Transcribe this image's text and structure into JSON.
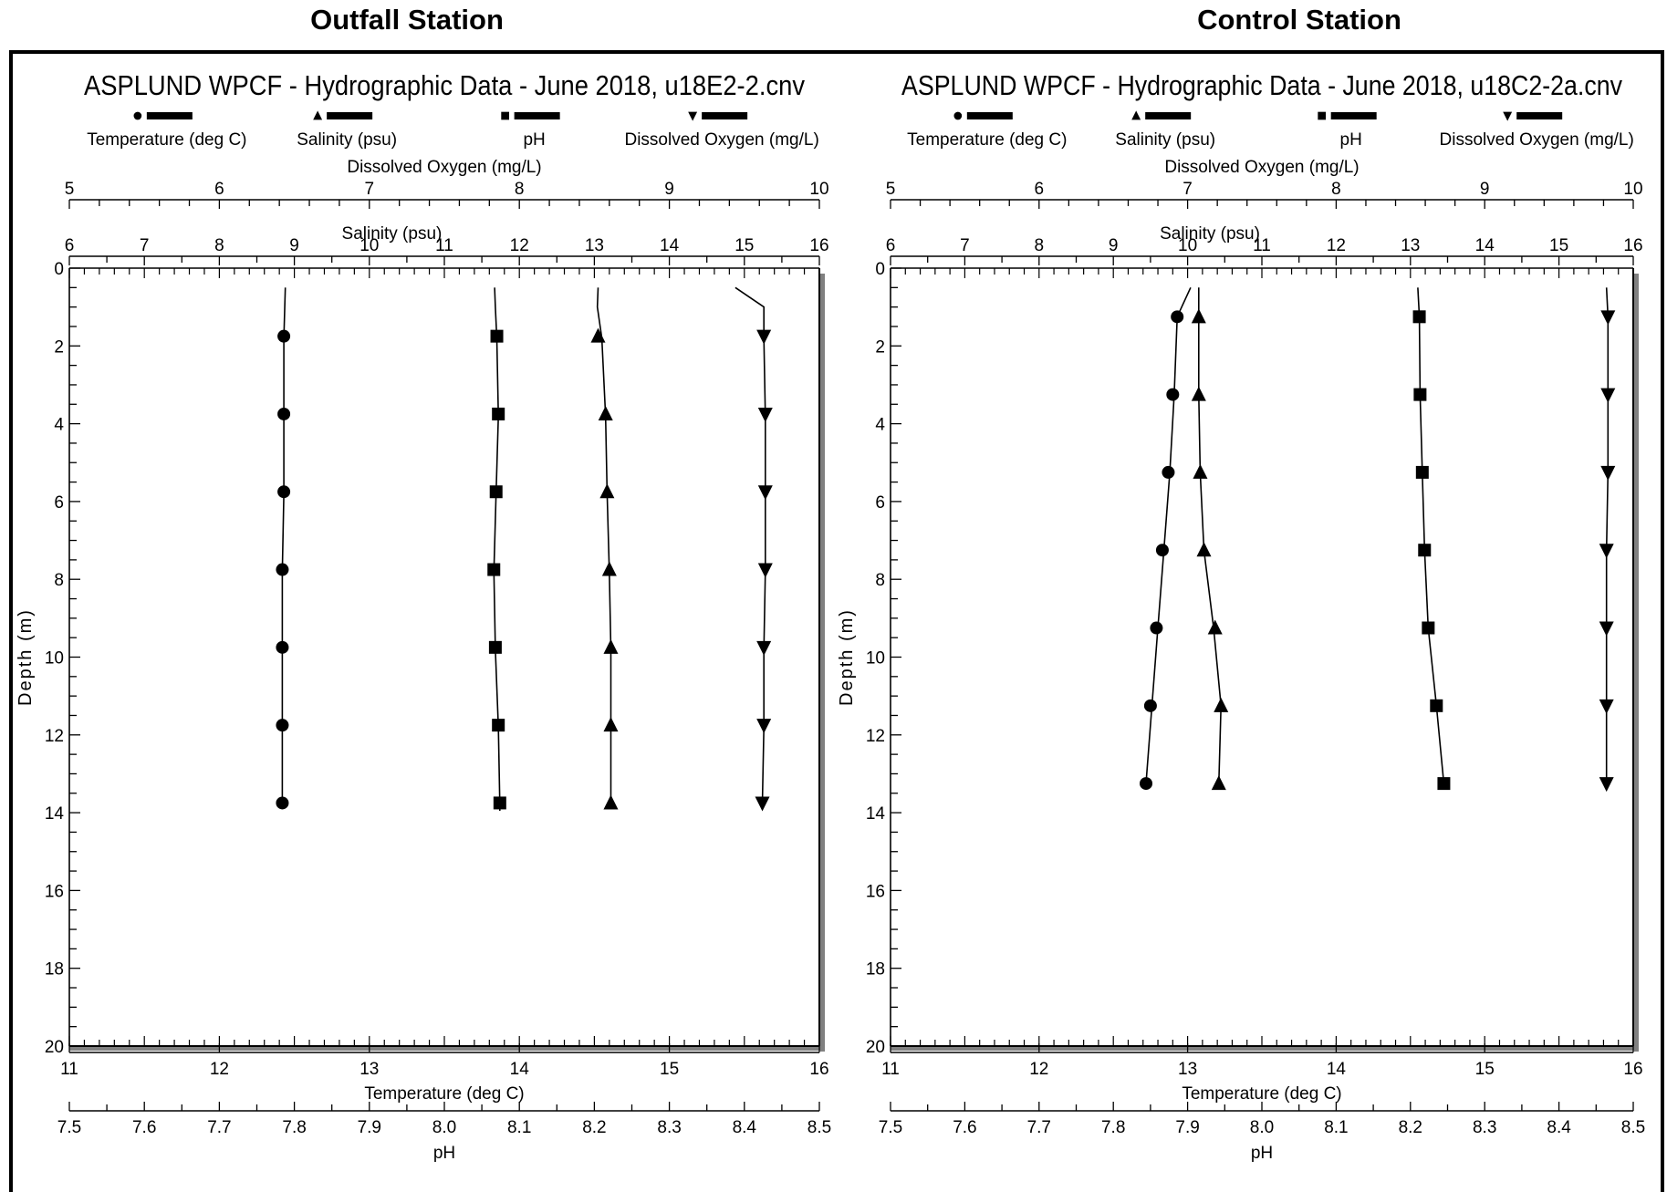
{
  "station_titles": {
    "left": "Outfall Station",
    "right": "Control Station"
  },
  "chart_data": [
    {
      "type": "line",
      "title": "ASPLUND WPCF - Hydrographic Data - June 2018, u18E2-2.cnv",
      "legend": [
        "Temperature (deg C)",
        "Salinity (psu)",
        "pH",
        "Dissolved Oxygen (mg/L)"
      ],
      "axes": {
        "do": {
          "label": "Dissolved Oxygen (mg/L)",
          "range": [
            5,
            10
          ],
          "ticks": [
            5,
            6,
            7,
            8,
            9,
            10
          ]
        },
        "salinity": {
          "label": "Salinity (psu)",
          "range": [
            6,
            16
          ],
          "ticks": [
            6,
            7,
            8,
            9,
            10,
            11,
            12,
            13,
            14,
            15,
            16
          ]
        },
        "depth": {
          "label": "Depth (m)",
          "range": [
            0,
            20
          ],
          "ticks": [
            0,
            2,
            4,
            6,
            8,
            10,
            12,
            14,
            16,
            18,
            20
          ],
          "inverted": true
        },
        "temperature": {
          "label": "Temperature (deg C)",
          "range": [
            11,
            16
          ],
          "ticks": [
            11,
            12,
            13,
            14,
            15,
            16
          ]
        },
        "ph": {
          "label": "pH",
          "range": [
            7.5,
            8.5
          ],
          "ticks": [
            "7.5",
            "7.6",
            "7.7",
            "7.8",
            "7.9",
            "8.0",
            "8.1",
            "8.2",
            "8.3",
            "8.4",
            "8.5"
          ]
        }
      },
      "series": [
        {
          "name": "Temperature (deg C)",
          "marker": "circle",
          "axis": "temperature",
          "line": [
            [
              12.44,
              0.5
            ],
            [
              12.43,
              1.8
            ],
            [
              12.43,
              3.8
            ],
            [
              12.43,
              5.8
            ],
            [
              12.42,
              7.8
            ],
            [
              12.42,
              9.8
            ],
            [
              12.42,
              11.8
            ],
            [
              12.42,
              13.8
            ],
            [
              12.42,
              13.9
            ]
          ],
          "points": [
            [
              12.43,
              1.75
            ],
            [
              12.43,
              3.75
            ],
            [
              12.43,
              5.75
            ],
            [
              12.42,
              7.75
            ],
            [
              12.42,
              9.75
            ],
            [
              12.42,
              11.75
            ],
            [
              12.42,
              13.75
            ]
          ]
        },
        {
          "name": "Salinity (psu)",
          "marker": "triangle-up",
          "axis": "salinity",
          "line": [
            [
              13.05,
              0.5
            ],
            [
              13.04,
              1.0
            ],
            [
              13.1,
              1.8
            ],
            [
              13.15,
              3.8
            ],
            [
              13.17,
              5.8
            ],
            [
              13.2,
              7.8
            ],
            [
              13.22,
              9.8
            ],
            [
              13.22,
              11.8
            ],
            [
              13.22,
              13.8
            ],
            [
              13.22,
              13.9
            ]
          ],
          "points": [
            [
              13.05,
              1.75
            ],
            [
              13.15,
              3.75
            ],
            [
              13.17,
              5.75
            ],
            [
              13.2,
              7.75
            ],
            [
              13.22,
              9.75
            ],
            [
              13.22,
              11.75
            ],
            [
              13.22,
              13.75
            ]
          ]
        },
        {
          "name": "pH",
          "marker": "square",
          "axis": "ph",
          "line": [
            [
              8.067,
              0.5
            ],
            [
              8.068,
              1.0
            ],
            [
              8.07,
              1.8
            ],
            [
              8.072,
              3.8
            ],
            [
              8.069,
              5.8
            ],
            [
              8.066,
              7.8
            ],
            [
              8.068,
              9.8
            ],
            [
              8.072,
              11.8
            ],
            [
              8.074,
              13.8
            ],
            [
              8.074,
              13.95
            ]
          ],
          "points": [
            [
              8.07,
              1.75
            ],
            [
              8.072,
              3.75
            ],
            [
              8.069,
              5.75
            ],
            [
              8.066,
              7.75
            ],
            [
              8.068,
              9.75
            ],
            [
              8.072,
              11.75
            ],
            [
              8.074,
              13.75
            ]
          ]
        },
        {
          "name": "Dissolved Oxygen (mg/L)",
          "marker": "triangle-down",
          "axis": "do",
          "line": [
            [
              9.44,
              0.5
            ],
            [
              9.63,
              1.0
            ],
            [
              9.63,
              1.8
            ],
            [
              9.64,
              3.8
            ],
            [
              9.64,
              5.8
            ],
            [
              9.64,
              7.8
            ],
            [
              9.63,
              9.8
            ],
            [
              9.63,
              11.8
            ],
            [
              9.62,
              13.8
            ]
          ],
          "points": [
            [
              9.63,
              1.75
            ],
            [
              9.64,
              3.75
            ],
            [
              9.64,
              5.75
            ],
            [
              9.64,
              7.75
            ],
            [
              9.63,
              9.75
            ],
            [
              9.63,
              11.75
            ],
            [
              9.62,
              13.75
            ]
          ]
        }
      ]
    },
    {
      "type": "line",
      "title": "ASPLUND WPCF - Hydrographic Data - June 2018, u18C2-2a.cnv",
      "legend": [
        "Temperature (deg C)",
        "Salinity (psu)",
        "pH",
        "Dissolved Oxygen (mg/L)"
      ],
      "axes": {
        "do": {
          "label": "Dissolved Oxygen (mg/L)",
          "range": [
            5,
            10
          ],
          "ticks": [
            5,
            6,
            7,
            8,
            9,
            10
          ]
        },
        "salinity": {
          "label": "Salinity (psu)",
          "range": [
            6,
            16
          ],
          "ticks": [
            6,
            7,
            8,
            9,
            10,
            11,
            12,
            13,
            14,
            15,
            16
          ]
        },
        "depth": {
          "label": "Depth (m)",
          "range": [
            0,
            20
          ],
          "ticks": [
            0,
            2,
            4,
            6,
            8,
            10,
            12,
            14,
            16,
            18,
            20
          ],
          "inverted": true
        },
        "temperature": {
          "label": "Temperature (deg C)",
          "range": [
            11,
            16
          ],
          "ticks": [
            11,
            12,
            13,
            14,
            15,
            16
          ]
        },
        "ph": {
          "label": "pH",
          "range": [
            7.5,
            8.5
          ],
          "ticks": [
            "7.5",
            "7.6",
            "7.7",
            "7.8",
            "7.9",
            "8.0",
            "8.1",
            "8.2",
            "8.3",
            "8.4",
            "8.5"
          ]
        }
      },
      "series": [
        {
          "name": "Temperature (deg C)",
          "marker": "circle",
          "axis": "temperature",
          "line": [
            [
              13.02,
              0.5
            ],
            [
              12.93,
              1.25
            ],
            [
              12.91,
              3.25
            ],
            [
              12.88,
              5.25
            ],
            [
              12.84,
              7.25
            ],
            [
              12.8,
              9.25
            ],
            [
              12.76,
              11.25
            ],
            [
              12.72,
              13.25
            ]
          ],
          "points": [
            [
              12.93,
              1.25
            ],
            [
              12.9,
              3.25
            ],
            [
              12.87,
              5.25
            ],
            [
              12.83,
              7.25
            ],
            [
              12.79,
              9.25
            ],
            [
              12.75,
              11.25
            ],
            [
              12.72,
              13.25
            ]
          ]
        },
        {
          "name": "Salinity (psu)",
          "marker": "triangle-up",
          "axis": "salinity",
          "line": [
            [
              10.15,
              0.5
            ],
            [
              10.15,
              1.25
            ],
            [
              10.15,
              3.25
            ],
            [
              10.17,
              5.25
            ],
            [
              10.22,
              7.25
            ],
            [
              10.35,
              9.25
            ],
            [
              10.45,
              11.25
            ],
            [
              10.42,
              13.25
            ]
          ],
          "points": [
            [
              10.15,
              1.25
            ],
            [
              10.15,
              3.25
            ],
            [
              10.17,
              5.25
            ],
            [
              10.22,
              7.25
            ],
            [
              10.37,
              9.25
            ],
            [
              10.45,
              11.25
            ],
            [
              10.42,
              13.25
            ]
          ]
        },
        {
          "name": "pH",
          "marker": "square",
          "axis": "ph",
          "line": [
            [
              8.21,
              0.5
            ],
            [
              8.212,
              1.25
            ],
            [
              8.213,
              3.25
            ],
            [
              8.216,
              5.25
            ],
            [
              8.219,
              7.25
            ],
            [
              8.224,
              9.25
            ],
            [
              8.235,
              11.25
            ],
            [
              8.245,
              13.25
            ]
          ],
          "points": [
            [
              8.212,
              1.25
            ],
            [
              8.213,
              3.25
            ],
            [
              8.216,
              5.25
            ],
            [
              8.219,
              7.25
            ],
            [
              8.224,
              9.25
            ],
            [
              8.235,
              11.25
            ],
            [
              8.245,
              13.25
            ]
          ]
        },
        {
          "name": "Dissolved Oxygen (mg/L)",
          "marker": "triangle-down",
          "axis": "do",
          "line": [
            [
              9.82,
              0.5
            ],
            [
              9.83,
              1.25
            ],
            [
              9.83,
              3.25
            ],
            [
              9.83,
              5.25
            ],
            [
              9.82,
              7.25
            ],
            [
              9.82,
              9.25
            ],
            [
              9.82,
              11.25
            ],
            [
              9.82,
              13.25
            ]
          ],
          "points": [
            [
              9.83,
              1.25
            ],
            [
              9.83,
              3.25
            ],
            [
              9.83,
              5.25
            ],
            [
              9.82,
              7.25
            ],
            [
              9.82,
              9.25
            ],
            [
              9.82,
              11.25
            ],
            [
              9.82,
              13.25
            ]
          ]
        }
      ]
    }
  ]
}
